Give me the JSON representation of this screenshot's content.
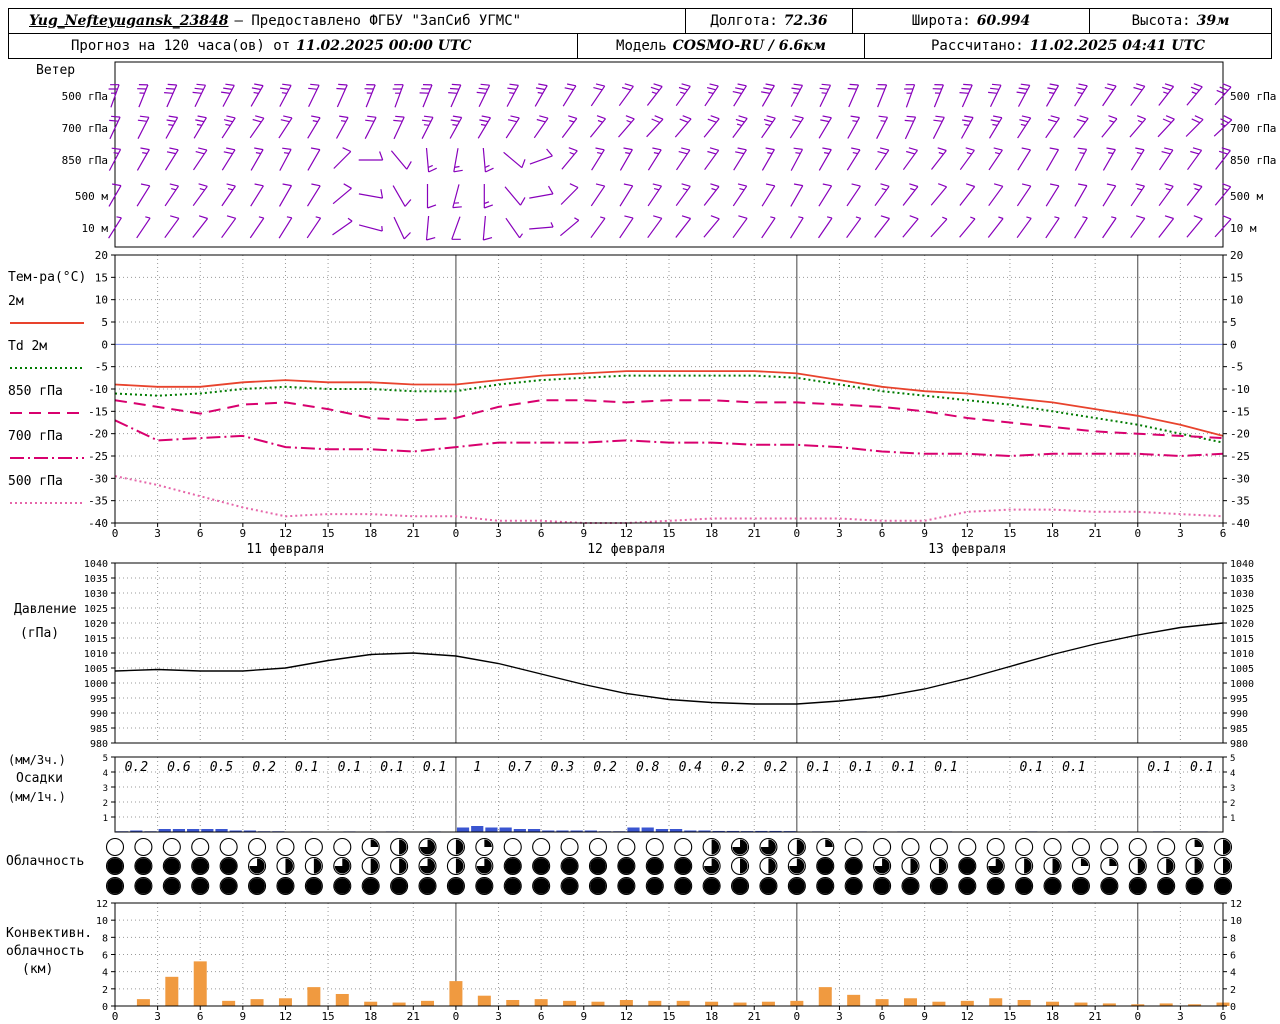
{
  "header": {
    "station": "Yug_Nefteyugansk_23848",
    "provider": "– Предоставлено ФГБУ \"ЗапСиб УГМС\"",
    "lon_label": "Долгота:",
    "lon": "72.36",
    "lat_label": "Широта:",
    "lat": "60.994",
    "alt_label": "Высота:",
    "alt": "39м",
    "forecast_label": "Прогноз на 120 часа(ов) от",
    "forecast_start": "11.02.2025 00:00 UTC",
    "model_label": "Модель",
    "model": "COSMO-RU / 6.6км",
    "calc_label": "Рассчитано:",
    "calc_time": "11.02.2025 04:41 UTC"
  },
  "labels": {
    "wind_title": "Ветер",
    "temp_title": "Тем-ра(°C)",
    "pressure_title_1": "Давление",
    "pressure_title_2": "(гПа)",
    "precip_label_1": "(мм/3ч.)",
    "precip_label_2": "Осадки",
    "precip_label_3": "(мм/1ч.)",
    "cloud_title": "Облачность",
    "conv_title_1": "Конвективн.",
    "conv_title_2": "облачность",
    "conv_title_3": "(км)"
  },
  "time_axis": {
    "hours_total": 78,
    "tick_step_hours": 3,
    "labels": [
      "0",
      "3",
      "6",
      "9",
      "12",
      "15",
      "18",
      "21",
      "0",
      "3",
      "6",
      "9",
      "12",
      "15",
      "18",
      "21",
      "0",
      "3",
      "6",
      "9",
      "12",
      "15",
      "18",
      "21",
      "0",
      "3",
      "6"
    ],
    "day_labels": [
      {
        "text": "11 февраля",
        "hour": 12
      },
      {
        "text": "12 февраля",
        "hour": 36
      },
      {
        "text": "13 февраля",
        "hour": 60
      }
    ]
  },
  "chart_data": [
    {
      "type": "wind-barbs",
      "title": "Ветер",
      "color": "#8800bb",
      "hours_step": 2,
      "levels": [
        {
          "name": "500 гПа",
          "dirs": [
            20,
            22,
            24,
            26,
            28,
            30,
            28,
            26,
            24,
            22,
            20,
            22,
            24,
            26,
            28,
            30,
            32,
            34,
            36,
            38,
            36,
            34,
            32,
            30,
            28,
            26,
            24,
            22,
            20,
            22,
            24,
            26,
            28,
            30,
            32,
            34,
            36,
            38,
            40,
            42
          ],
          "speeds": [
            25,
            25,
            30,
            30,
            30,
            25,
            25,
            20,
            20,
            25,
            25,
            30,
            30,
            30,
            25,
            25,
            20,
            20,
            20,
            25,
            25,
            25,
            30,
            30,
            25,
            25,
            20,
            20,
            25,
            25,
            30,
            30,
            30,
            25,
            25,
            20,
            20,
            25,
            25,
            30
          ]
        },
        {
          "name": "700 гПа",
          "dirs": [
            25,
            27,
            29,
            31,
            33,
            35,
            33,
            31,
            29,
            27,
            25,
            27,
            29,
            31,
            33,
            35,
            37,
            39,
            41,
            43,
            41,
            39,
            37,
            35,
            33,
            31,
            29,
            27,
            25,
            27,
            29,
            31,
            33,
            35,
            37,
            39,
            41,
            43,
            45,
            47
          ],
          "speeds": [
            20,
            20,
            25,
            25,
            25,
            20,
            20,
            15,
            15,
            20,
            20,
            25,
            25,
            25,
            20,
            20,
            15,
            15,
            15,
            20,
            20,
            20,
            25,
            25,
            20,
            20,
            15,
            15,
            20,
            20,
            25,
            25,
            25,
            20,
            20,
            15,
            15,
            20,
            20,
            25
          ]
        },
        {
          "name": "850 гПа",
          "dirs": [
            28,
            30,
            32,
            34,
            32,
            30,
            28,
            30,
            45,
            90,
            140,
            175,
            190,
            175,
            130,
            70,
            40,
            32,
            30,
            32,
            34,
            36,
            32,
            30,
            28,
            30,
            32,
            34,
            36,
            38,
            36,
            34,
            32,
            30,
            28,
            30,
            32,
            34,
            36,
            38
          ],
          "speeds": [
            15,
            15,
            20,
            20,
            20,
            15,
            15,
            10,
            10,
            10,
            10,
            15,
            15,
            15,
            10,
            10,
            15,
            15,
            15,
            15,
            20,
            20,
            20,
            15,
            15,
            15,
            15,
            20,
            20,
            15,
            15,
            15,
            10,
            10,
            15,
            15,
            15,
            20,
            20,
            20
          ]
        },
        {
          "name": "500 м",
          "dirs": [
            30,
            32,
            34,
            36,
            34,
            32,
            30,
            32,
            50,
            100,
            150,
            180,
            195,
            180,
            140,
            80,
            45,
            34,
            32,
            34,
            36,
            38,
            34,
            32,
            30,
            32,
            34,
            36,
            38,
            40,
            38,
            36,
            34,
            32,
            30,
            32,
            34,
            36,
            38,
            40
          ],
          "speeds": [
            10,
            10,
            15,
            15,
            15,
            10,
            10,
            10,
            10,
            10,
            10,
            10,
            15,
            15,
            10,
            10,
            10,
            10,
            10,
            15,
            15,
            15,
            15,
            10,
            10,
            10,
            10,
            15,
            15,
            10,
            10,
            10,
            10,
            10,
            10,
            10,
            15,
            15,
            15,
            15
          ]
        },
        {
          "name": "10 м",
          "dirs": [
            32,
            34,
            36,
            38,
            36,
            34,
            32,
            34,
            55,
            105,
            155,
            185,
            200,
            185,
            145,
            85,
            50,
            36,
            34,
            36,
            38,
            40,
            36,
            34,
            32,
            34,
            36,
            38,
            40,
            42,
            40,
            38,
            36,
            34,
            32,
            34,
            36,
            38,
            40,
            42
          ],
          "speeds": [
            5,
            5,
            10,
            10,
            10,
            5,
            5,
            5,
            5,
            5,
            10,
            10,
            10,
            10,
            5,
            5,
            5,
            5,
            10,
            10,
            10,
            10,
            10,
            5,
            5,
            5,
            5,
            10,
            10,
            5,
            5,
            5,
            5,
            5,
            5,
            5,
            10,
            10,
            10,
            10
          ]
        }
      ]
    },
    {
      "type": "line",
      "title": "Тем-ра(°C)",
      "ylim": [
        -40,
        20
      ],
      "yticks": [
        20,
        15,
        10,
        5,
        0,
        -5,
        -10,
        -15,
        -20,
        -25,
        -30,
        -35,
        -40
      ],
      "zero_line_color": "#7788ee",
      "x_step_hours": 3,
      "series": [
        {
          "name": "2м",
          "color": "#e8432d",
          "dash": "solid",
          "values": [
            -9,
            -9.5,
            -9.5,
            -8.5,
            -8,
            -8.5,
            -8.5,
            -9,
            -9,
            -8,
            -7,
            -6.5,
            -6,
            -6,
            -6,
            -6,
            -6.5,
            -8,
            -9.5,
            -10.5,
            -11,
            -12,
            -13,
            -14.5,
            -16,
            -18,
            -20.5
          ]
        },
        {
          "name": "Td 2м",
          "color": "#007a00",
          "dash": "dot",
          "values": [
            -11,
            -11.5,
            -11,
            -10,
            -9.5,
            -10,
            -10,
            -10.5,
            -10.5,
            -9,
            -8,
            -7.5,
            -7,
            -7,
            -7,
            -7,
            -7.5,
            -9,
            -10.5,
            -11.5,
            -12.5,
            -13.5,
            -15,
            -16.5,
            -18,
            -20,
            -22
          ]
        },
        {
          "name": "850 гПа",
          "color": "#d8006e",
          "dash": "longdash",
          "values": [
            -12.5,
            -14,
            -15.5,
            -13.5,
            -13,
            -14.5,
            -16.5,
            -17,
            -16.5,
            -14,
            -12.5,
            -12.5,
            -13,
            -12.5,
            -12.5,
            -13,
            -13,
            -13.5,
            -14,
            -15,
            -16.5,
            -17.5,
            -18.5,
            -19.5,
            -20,
            -20.5,
            -21
          ]
        },
        {
          "name": "700 гПа",
          "color": "#d8006e",
          "dash": "dashdot",
          "values": [
            -17,
            -21.5,
            -21,
            -20.5,
            -23,
            -23.5,
            -23.5,
            -24,
            -23,
            -22,
            -22,
            -22,
            -21.5,
            -22,
            -22,
            -22.5,
            -22.5,
            -23,
            -24,
            -24.5,
            -24.5,
            -25,
            -24.5,
            -24.5,
            -24.5,
            -25,
            -24.5
          ]
        },
        {
          "name": "500 гПа",
          "color": "#e666aa",
          "dash": "dot",
          "values": [
            -29.5,
            -31.5,
            -34,
            -36.5,
            -38.5,
            -38,
            -38,
            -38.5,
            -38.5,
            -39.5,
            -39.5,
            -40,
            -40,
            -39.5,
            -39,
            -39,
            -39,
            -39,
            -39.5,
            -39.5,
            -37.5,
            -37,
            -37,
            -37.5,
            -37.5,
            -38,
            -38.5
          ]
        }
      ]
    },
    {
      "type": "line",
      "title": "Давление (гПа)",
      "ylim": [
        980,
        1040
      ],
      "yticks": [
        1040,
        1035,
        1030,
        1025,
        1020,
        1015,
        1010,
        1005,
        1000,
        995,
        990,
        985,
        980
      ],
      "x_step_hours": 3,
      "color": "#000000",
      "values": [
        1004,
        1004.5,
        1004,
        1004,
        1005,
        1007.5,
        1009.5,
        1010,
        1009,
        1006.5,
        1003,
        999.5,
        996.5,
        994.5,
        993.5,
        993,
        993,
        994,
        995.5,
        998,
        1001.5,
        1005.5,
        1009.5,
        1013,
        1016,
        1018.5,
        1020
      ]
    },
    {
      "type": "bar",
      "title": "Осадки",
      "units_sum": "мм/3ч.",
      "units_bar": "мм/1ч.",
      "ylim": [
        0,
        5
      ],
      "yticks": [
        5,
        4,
        3,
        2,
        1
      ],
      "bar_color": "#3a55d0",
      "labels_3h": [
        "0.2",
        "0.6",
        "0.5",
        "0.2",
        "0.1",
        "0.1",
        "0.1",
        "0.1",
        "1",
        "0.7",
        "0.3",
        "0.2",
        "0.8",
        "0.4",
        "0.2",
        "0.2",
        "0.1",
        "0.1",
        "0.1",
        "0.1",
        "",
        "0.1",
        "0.1",
        "",
        "0.1",
        "0.1"
      ],
      "hourly": [
        0.05,
        0.1,
        0.05,
        0.2,
        0.2,
        0.2,
        0.2,
        0.2,
        0.1,
        0.1,
        0.05,
        0.05,
        0.03,
        0.04,
        0.03,
        0.03,
        0.04,
        0.03,
        0.03,
        0.04,
        0.03,
        0.03,
        0.04,
        0.03,
        0.3,
        0.4,
        0.3,
        0.3,
        0.2,
        0.2,
        0.1,
        0.1,
        0.1,
        0.1,
        0.05,
        0.05,
        0.3,
        0.3,
        0.2,
        0.2,
        0.1,
        0.1,
        0.07,
        0.07,
        0.06,
        0.07,
        0.07,
        0.06,
        0.03,
        0.04,
        0.03,
        0.03,
        0.04,
        0.03,
        0.03,
        0.04,
        0.03,
        0.03,
        0.04,
        0.03,
        0,
        0,
        0,
        0.03,
        0.04,
        0.03,
        0.03,
        0.04,
        0.03,
        0,
        0,
        0,
        0.03,
        0.04,
        0.03,
        0.03,
        0.04,
        0.03
      ]
    },
    {
      "type": "symbol-rows",
      "title": "Облачность",
      "hours_step": 2,
      "fill_scale_0_to_4": true,
      "rows": [
        [
          0,
          0,
          0,
          0,
          0,
          0,
          0,
          0,
          0,
          1,
          2,
          3,
          2,
          1,
          0,
          0,
          0,
          0,
          0,
          0,
          0,
          2,
          3,
          3,
          2,
          1,
          0,
          0,
          0,
          0,
          0,
          0,
          0,
          0,
          0,
          0,
          0,
          0,
          1,
          2
        ],
        [
          4,
          4,
          4,
          4,
          4,
          3,
          2,
          2,
          3,
          2,
          2,
          3,
          2,
          3,
          4,
          4,
          4,
          4,
          4,
          4,
          4,
          3,
          2,
          2,
          3,
          4,
          4,
          3,
          2,
          2,
          4,
          3,
          2,
          2,
          1,
          1,
          2,
          2,
          2,
          2
        ],
        [
          4,
          4,
          4,
          4,
          4,
          4,
          4,
          4,
          4,
          4,
          4,
          4,
          4,
          4,
          4,
          4,
          4,
          4,
          4,
          4,
          4,
          4,
          4,
          4,
          4,
          4,
          4,
          4,
          4,
          4,
          4,
          4,
          4,
          4,
          4,
          4,
          4,
          4,
          4,
          4
        ]
      ]
    },
    {
      "type": "bar",
      "title": "Конвективная облачность (км)",
      "ylim": [
        0,
        12
      ],
      "yticks": [
        12,
        10,
        8,
        6,
        4,
        2,
        0
      ],
      "hours_step": 2,
      "bar_color": "#f09a40",
      "values": [
        0,
        0.8,
        3.4,
        5.2,
        0.6,
        0.8,
        0.9,
        2.2,
        1.4,
        0.5,
        0.4,
        0.6,
        2.9,
        1.2,
        0.7,
        0.8,
        0.6,
        0.5,
        0.7,
        0.6,
        0.6,
        0.5,
        0.4,
        0.5,
        0.6,
        2.2,
        1.3,
        0.8,
        0.9,
        0.5,
        0.6,
        0.9,
        0.7,
        0.5,
        0.4,
        0.3,
        0.2,
        0.3,
        0.2,
        0.4
      ]
    }
  ]
}
